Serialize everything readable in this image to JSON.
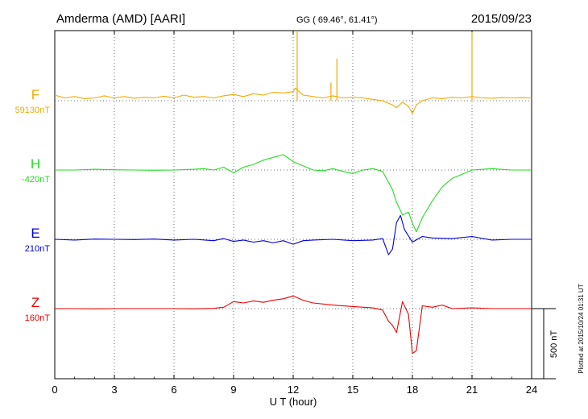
{
  "header": {
    "station": "Amderma (AMD)  [AARI]",
    "coords": "GG ( 69.46°,  61.41°)",
    "date": "2015/09/23"
  },
  "footer_note": "Plotted at 2015/10/24 01:31  UT",
  "chart_data": {
    "type": "line",
    "xlabel": "U T (hour)",
    "xlim": [
      0,
      24
    ],
    "xticks": [
      0,
      3,
      6,
      9,
      12,
      15,
      18,
      21,
      24
    ],
    "grid": true,
    "scale_bar": {
      "label": "500 nT",
      "nT": 500
    },
    "series": [
      {
        "name": "F",
        "baseline_label": "59130nT",
        "baseline": 59130,
        "color": "#f2aa00",
        "x": [
          0,
          0.5,
          1,
          1.5,
          2,
          2.5,
          3,
          3.5,
          4,
          4.5,
          5,
          5.5,
          6,
          6.5,
          7,
          7.5,
          8,
          8.5,
          9,
          9.5,
          10,
          10.5,
          11,
          11.5,
          12,
          12.1,
          12.5,
          13,
          13.5,
          14,
          14.5,
          15,
          15.5,
          16,
          16.5,
          17,
          17.2,
          17.5,
          17.8,
          18,
          18.2,
          18.5,
          19,
          19.5,
          20,
          20.5,
          21,
          21.5,
          22,
          22.5,
          23,
          23.5,
          24
        ],
        "y": [
          59170,
          59150,
          59160,
          59145,
          59150,
          59165,
          59150,
          59160,
          59148,
          59155,
          59150,
          59162,
          59150,
          59170,
          59155,
          59160,
          59150,
          59165,
          59175,
          59160,
          59180,
          59170,
          59190,
          59185,
          59195,
          59220,
          59170,
          59160,
          59150,
          59165,
          59150,
          59155,
          59150,
          59140,
          59130,
          59100,
          59080,
          59120,
          59090,
          59040,
          59100,
          59130,
          59150,
          59145,
          59155,
          59150,
          59160,
          59150,
          59148,
          59152,
          59150,
          59152,
          59150
        ],
        "spikes": [
          {
            "x": 12.2,
            "y": 59640
          },
          {
            "x": 14.2,
            "y": 59430
          },
          {
            "x": 13.9,
            "y": 59260
          },
          {
            "x": 21.0,
            "y": 59620
          }
        ]
      },
      {
        "name": "H",
        "baseline_label": "-420nT",
        "baseline": -420,
        "color": "#22dd22",
        "x": [
          0,
          1,
          2,
          3,
          4,
          5,
          6,
          7,
          7.5,
          8,
          8.5,
          9,
          9.5,
          10,
          10.5,
          11,
          11.5,
          12,
          12.5,
          13,
          13.5,
          14,
          14.5,
          15,
          15.5,
          16,
          16.5,
          17,
          17.2,
          17.5,
          17.8,
          18,
          18.2,
          18.5,
          19,
          19.5,
          20,
          20.5,
          21,
          22,
          23,
          24
        ],
        "y": [
          -420,
          -420,
          -415,
          -418,
          -420,
          -422,
          -420,
          -415,
          -410,
          -420,
          -400,
          -440,
          -400,
          -380,
          -350,
          -330,
          -310,
          -360,
          -390,
          -420,
          -425,
          -410,
          -430,
          -445,
          -420,
          -410,
          -430,
          -560,
          -650,
          -740,
          -720,
          -800,
          -860,
          -760,
          -640,
          -540,
          -480,
          -450,
          -420,
          -410,
          -420,
          -420
        ]
      },
      {
        "name": "E",
        "baseline_label": "210nT",
        "baseline": 210,
        "color": "#0000dd",
        "x": [
          0,
          1,
          2,
          3,
          4,
          5,
          6,
          7,
          8,
          8.5,
          9,
          9.5,
          10,
          10.5,
          11,
          11.5,
          12,
          12.5,
          13,
          14,
          15,
          16,
          16.5,
          16.8,
          17,
          17.2,
          17.4,
          17.6,
          18,
          18.5,
          19,
          20,
          21,
          22,
          23,
          24
        ],
        "y": [
          210,
          205,
          212,
          210,
          208,
          212,
          205,
          210,
          200,
          215,
          195,
          205,
          190,
          200,
          185,
          200,
          175,
          200,
          205,
          210,
          200,
          205,
          215,
          100,
          140,
          330,
          380,
          280,
          190,
          230,
          220,
          215,
          230,
          205,
          210,
          210
        ]
      },
      {
        "name": "Z",
        "baseline_label": "160nT",
        "baseline": 160,
        "color": "#ee0000",
        "x": [
          0,
          1,
          2,
          3,
          4,
          5,
          6,
          7,
          8,
          8.5,
          9,
          9.5,
          10,
          10.5,
          11,
          11.5,
          12,
          12.5,
          13,
          14,
          15,
          16,
          16.5,
          16.8,
          17,
          17.2,
          17.5,
          17.8,
          18,
          18.2,
          18.5,
          19,
          19.5,
          20,
          21,
          22,
          23,
          24
        ],
        "y": [
          160,
          160,
          158,
          160,
          160,
          160,
          160,
          158,
          162,
          170,
          210,
          200,
          215,
          205,
          220,
          230,
          250,
          220,
          200,
          185,
          175,
          165,
          150,
          70,
          40,
          -10,
          210,
          120,
          -160,
          -140,
          180,
          170,
          185,
          160,
          165,
          160,
          160,
          160
        ]
      }
    ]
  }
}
